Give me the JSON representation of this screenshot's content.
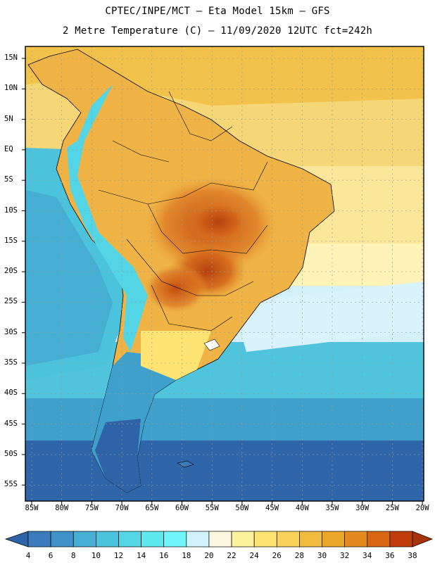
{
  "header": {
    "line1": "CPTEC/INPE/MCT –  Eta Model 15km – GFS",
    "line2": "2 Metre Temperature (C) – 11/09/2020 12UTC fct=242h"
  },
  "map": {
    "lat_labels": [
      "15N",
      "10N",
      "5N",
      "EQ",
      "5S",
      "10S",
      "15S",
      "20S",
      "25S",
      "30S",
      "35S",
      "40S",
      "45S",
      "50S",
      "55S"
    ],
    "lon_labels": [
      "85W",
      "80W",
      "75W",
      "70W",
      "65W",
      "60W",
      "55W",
      "50W",
      "45W",
      "40W",
      "35W",
      "30W",
      "25W",
      "20W"
    ],
    "variable": "2 Metre Temperature",
    "units": "C"
  },
  "colorbar": {
    "labels": [
      "4",
      "6",
      "8",
      "10",
      "12",
      "14",
      "16",
      "18",
      "20",
      "22",
      "24",
      "26",
      "28",
      "30",
      "32",
      "34",
      "36",
      "38"
    ],
    "colors": [
      "#2e63a8",
      "#3b7bbc",
      "#3f93c8",
      "#45aed3",
      "#4cc3dc",
      "#53d5e6",
      "#5ee9ef",
      "#6ff6fa",
      "#d0f3fb",
      "#fff8e0",
      "#fff29c",
      "#fde473",
      "#f8d25a",
      "#f0bc40",
      "#eaa72a",
      "#e58a1e",
      "#d96612",
      "#bf3d0a",
      "#a8330a"
    ]
  }
}
